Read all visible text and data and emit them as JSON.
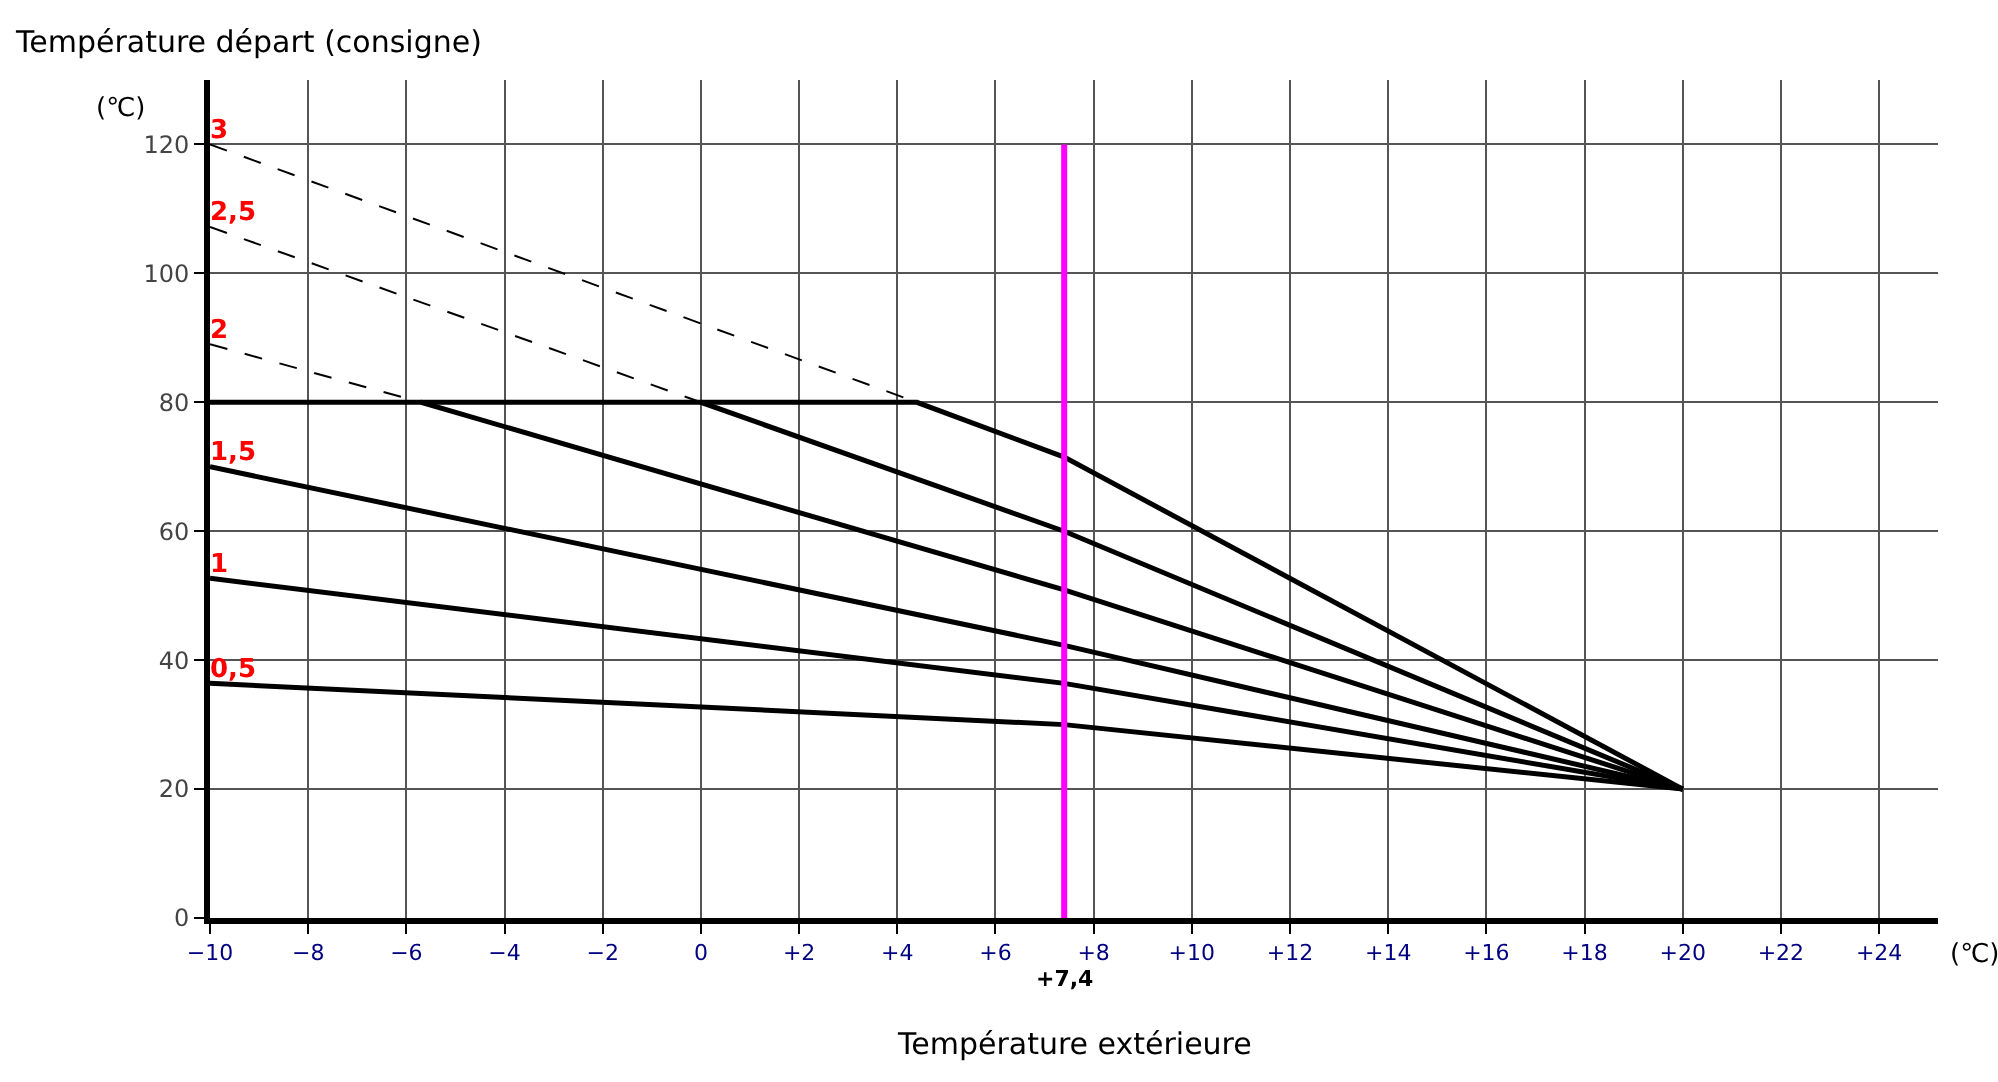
{
  "chart_data": {
    "type": "line",
    "ylabel": "Température départ (consigne)",
    "xlabel": "Température extérieure",
    "xlim": [
      -10,
      25.2
    ],
    "ylim": [
      0,
      130
    ],
    "xticks": [
      {
        "value": -10,
        "label": "−10"
      },
      {
        "value": -8,
        "label": "−8"
      },
      {
        "value": -6,
        "label": "−6"
      },
      {
        "value": -4,
        "label": "−4"
      },
      {
        "value": -2,
        "label": "−2"
      },
      0,
      {
        "value": 2,
        "label": "+2"
      },
      {
        "value": 4,
        "label": "+4"
      },
      {
        "value": 6,
        "label": "+6"
      },
      {
        "value": 8,
        "label": "+8"
      },
      {
        "value": 10,
        "label": "+10"
      },
      {
        "value": 12,
        "label": "+12"
      },
      {
        "value": 14,
        "label": "+14"
      },
      {
        "value": 16,
        "label": "+16"
      },
      {
        "value": 18,
        "label": "+18"
      },
      {
        "value": 20,
        "label": "+20"
      },
      {
        "value": 22,
        "label": "+22"
      },
      {
        "value": 24,
        "label": "+24"
      }
    ],
    "yticks": [
      0,
      20,
      40,
      60,
      80,
      100,
      120
    ],
    "grid": true,
    "marker": "none",
    "series": [
      {
        "name": "0,5",
        "color": "#000000",
        "line_style": "solid",
        "x": [
          -10,
          7.4,
          20
        ],
        "values": [
          36.4,
          30,
          20
        ]
      },
      {
        "name": "1",
        "color": "#000000",
        "line_style": "solid",
        "x": [
          -10,
          7.4,
          20
        ],
        "values": [
          52.7,
          36.4,
          20
        ]
      },
      {
        "name": "1,5",
        "color": "#000000",
        "line_style": "solid",
        "x": [
          -10,
          7.4,
          20
        ],
        "values": [
          70,
          42.3,
          20
        ]
      },
      {
        "color": "#000000",
        "line_style": "solid",
        "x": [
          -10,
          -5.7,
          7.4,
          20
        ],
        "values": [
          80,
          80,
          50.9,
          20
        ]
      },
      {
        "color": "#000000",
        "line_style": "solid",
        "x": [
          -5.7,
          0,
          7.4,
          20
        ],
        "values": [
          80,
          80,
          60,
          20
        ]
      },
      {
        "color": "#000000",
        "line_style": "solid",
        "x": [
          0,
          4.4,
          7.4,
          20
        ],
        "values": [
          80,
          80,
          71.5,
          20
        ]
      },
      {
        "name": "2",
        "color": "#000000",
        "line_style": "dashed",
        "x": [
          -10,
          -5.7
        ],
        "values": [
          89,
          80
        ]
      },
      {
        "name": "2,5",
        "color": "#000000",
        "line_style": "dashed",
        "x": [
          -10,
          0
        ],
        "values": [
          107.2,
          80
        ]
      },
      {
        "name": "3",
        "color": "#000000",
        "line_style": "dashed",
        "x": [
          -10,
          4.4
        ],
        "values": [
          120,
          80
        ]
      }
    ],
    "ref_lines": [
      {
        "axis": "x",
        "value": 7.4,
        "label": "+7,4",
        "color": "#ff00ff"
      }
    ],
    "annotations": [
      "(℃)",
      "(℃)"
    ]
  }
}
